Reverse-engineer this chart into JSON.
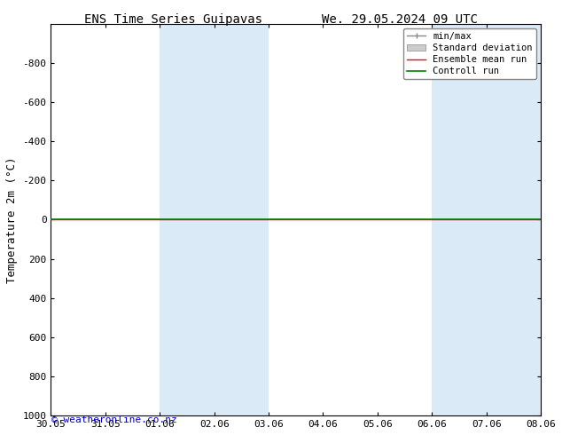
{
  "title_left": "ENS Time Series Guipavas",
  "title_right": "We. 29.05.2024 09 UTC",
  "ylabel": "Temperature 2m (°C)",
  "xlabel": "",
  "ylim": [
    -1000,
    1000
  ],
  "yticks": [
    -800,
    -600,
    -400,
    -200,
    0,
    200,
    400,
    600,
    800,
    1000
  ],
  "x_tick_labels": [
    "30.05",
    "31.05",
    "01.06",
    "02.06",
    "03.06",
    "04.06",
    "05.06",
    "06.06",
    "07.06",
    "08.06"
  ],
  "x_tick_positions": [
    0,
    1,
    2,
    3,
    4,
    5,
    6,
    7,
    8,
    9
  ],
  "shaded_regions": [
    {
      "xmin": 2,
      "xmax": 3,
      "color": "#daeaf7"
    },
    {
      "xmin": 3,
      "xmax": 4,
      "color": "#daeaf7"
    },
    {
      "xmin": 7,
      "xmax": 8,
      "color": "#daeaf7"
    },
    {
      "xmin": 8,
      "xmax": 9,
      "color": "#daeaf7"
    }
  ],
  "green_line_y": 0,
  "red_line_y": 0,
  "watermark": "© weatheronline.co.nz",
  "watermark_color": "#0000cc",
  "background_color": "#ffffff",
  "plot_bg_color": "#ffffff",
  "title_fontsize": 10,
  "axis_fontsize": 9,
  "tick_fontsize": 8,
  "legend_fontsize": 7.5
}
